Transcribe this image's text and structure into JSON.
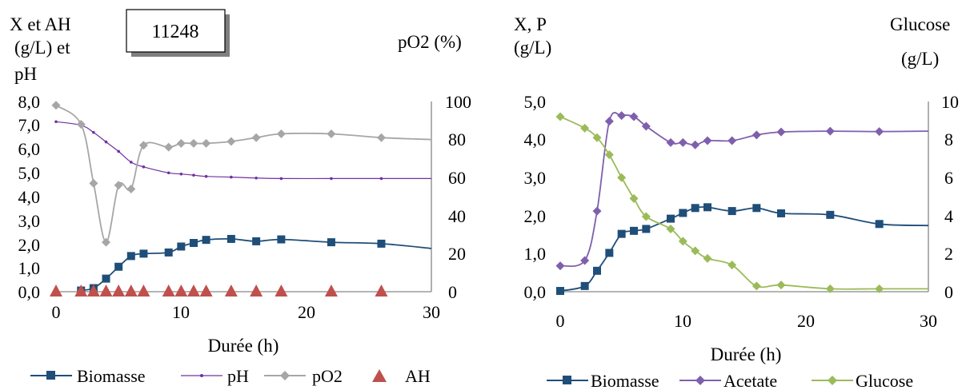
{
  "chart_data": [
    {
      "type": "line",
      "badge": "11248",
      "y_left_title": [
        "X et AH",
        "(g/L) et",
        "pH"
      ],
      "y_right_title": "pO2 (%)",
      "xlabel": "Durée (h)",
      "xlim": [
        0,
        30
      ],
      "ylim_left": [
        0,
        8
      ],
      "ylim_right": [
        0,
        100
      ],
      "x_ticks": [
        "0",
        "10",
        "20",
        "30"
      ],
      "y_left_ticks": [
        "0,0",
        "1,0",
        "2,0",
        "3,0",
        "4,0",
        "5,0",
        "6,0",
        "7,0",
        "8,0"
      ],
      "y_right_ticks": [
        "0",
        "20",
        "40",
        "60",
        "80",
        "100"
      ],
      "grid": false,
      "legend_position": "bottom",
      "series": [
        {
          "name": "Biomasse",
          "axis": "left",
          "color": "#1f4e79",
          "marker": "square",
          "x": [
            2,
            3,
            4,
            5,
            6,
            7,
            9,
            10,
            11,
            12,
            14,
            16,
            18,
            22,
            26,
            30
          ],
          "y": [
            0.05,
            0.15,
            0.55,
            1.05,
            1.5,
            1.6,
            1.65,
            1.9,
            2.05,
            2.18,
            2.22,
            2.12,
            2.2,
            2.08,
            2.02,
            1.82
          ],
          "marked": [
            true,
            true,
            true,
            true,
            true,
            true,
            true,
            true,
            true,
            true,
            true,
            true,
            true,
            true,
            true,
            false
          ]
        },
        {
          "name": "pH",
          "axis": "left",
          "color": "#7030a0",
          "marker": "dot",
          "x": [
            0,
            2,
            3,
            4,
            5,
            6,
            7,
            9,
            10,
            11,
            12,
            14,
            16,
            18,
            22,
            26,
            30
          ],
          "y": [
            7.15,
            7.0,
            6.7,
            6.3,
            5.9,
            5.45,
            5.25,
            5.0,
            4.95,
            4.9,
            4.85,
            4.82,
            4.78,
            4.76,
            4.76,
            4.76,
            4.76
          ],
          "marked": [
            true,
            true,
            true,
            true,
            true,
            true,
            true,
            true,
            true,
            true,
            true,
            true,
            true,
            true,
            true,
            true,
            false
          ]
        },
        {
          "name": "pO2",
          "axis": "right",
          "color": "#a6a6a6",
          "marker": "diamond",
          "x": [
            0,
            2,
            3,
            4,
            5,
            6,
            7,
            9,
            10,
            11,
            12,
            14,
            16,
            18,
            22,
            26,
            30
          ],
          "y": [
            98,
            88,
            57,
            26,
            56,
            54,
            77,
            76,
            78,
            78,
            78,
            79,
            81,
            83,
            83,
            81,
            80
          ],
          "marked": [
            true,
            true,
            true,
            true,
            true,
            true,
            true,
            true,
            true,
            true,
            true,
            true,
            true,
            true,
            true,
            true,
            false
          ]
        },
        {
          "name": "AH",
          "axis": "left",
          "color": "#c0504d",
          "marker": "triangle",
          "line": false,
          "x": [
            0,
            2,
            3,
            4,
            5,
            6,
            7,
            9,
            10,
            11,
            12,
            14,
            16,
            18,
            22,
            26
          ],
          "y": [
            0,
            0,
            0,
            0,
            0,
            0,
            0,
            0,
            0,
            0,
            0,
            0,
            0,
            0,
            0,
            0
          ]
        }
      ]
    },
    {
      "type": "line",
      "y_left_title": [
        "X, P",
        "(g/L)"
      ],
      "y_right_title": [
        "Glucose",
        "(g/L)"
      ],
      "xlabel": "Durée (h)",
      "xlim": [
        0,
        30
      ],
      "ylim_left": [
        0,
        5
      ],
      "ylim_right": [
        0,
        10
      ],
      "x_ticks": [
        "0",
        "10",
        "20",
        "30"
      ],
      "y_left_ticks": [
        "0,0",
        "1,0",
        "2,0",
        "3,0",
        "4,0",
        "5,0"
      ],
      "y_right_ticks": [
        "0",
        "2",
        "4",
        "6",
        "8",
        "10"
      ],
      "grid": false,
      "legend_position": "bottom",
      "series": [
        {
          "name": "Biomasse",
          "axis": "left",
          "color": "#1f4e79",
          "marker": "square",
          "x": [
            0,
            2,
            3,
            4,
            5,
            6,
            7,
            9,
            10,
            11,
            12,
            14,
            16,
            18,
            22,
            26,
            30
          ],
          "y": [
            0.02,
            0.15,
            0.55,
            1.02,
            1.52,
            1.6,
            1.65,
            1.92,
            2.07,
            2.2,
            2.22,
            2.12,
            2.2,
            2.06,
            2.02,
            1.78,
            1.74
          ],
          "marked": [
            true,
            true,
            true,
            true,
            true,
            true,
            true,
            true,
            true,
            true,
            true,
            true,
            true,
            true,
            true,
            true,
            false
          ]
        },
        {
          "name": "Acetate",
          "axis": "left",
          "color": "#7f5fad",
          "marker": "diamond",
          "x": [
            0,
            2,
            3,
            4,
            5,
            6,
            7,
            9,
            10,
            11,
            12,
            14,
            16,
            18,
            22,
            26,
            30
          ],
          "y": [
            0.68,
            0.82,
            2.12,
            4.48,
            4.63,
            4.6,
            4.35,
            3.92,
            3.92,
            3.86,
            3.97,
            3.97,
            4.12,
            4.2,
            4.22,
            4.21,
            4.22
          ],
          "marked": [
            true,
            true,
            true,
            true,
            true,
            true,
            true,
            true,
            true,
            true,
            true,
            true,
            true,
            true,
            true,
            true,
            false
          ]
        },
        {
          "name": "Glucose",
          "axis": "right",
          "color": "#9bbb59",
          "marker": "diamond",
          "x": [
            0,
            2,
            3,
            4,
            5,
            6,
            7,
            9,
            10,
            11,
            12,
            14,
            16,
            18,
            22,
            26,
            30
          ],
          "y": [
            9.2,
            8.6,
            8.1,
            7.2,
            6.0,
            4.9,
            3.95,
            3.3,
            2.65,
            2.15,
            1.75,
            1.4,
            0.3,
            0.35,
            0.15,
            0.15,
            0.15
          ],
          "marked": [
            true,
            true,
            true,
            true,
            true,
            true,
            true,
            true,
            true,
            true,
            true,
            true,
            true,
            true,
            true,
            true,
            false
          ]
        }
      ]
    }
  ]
}
